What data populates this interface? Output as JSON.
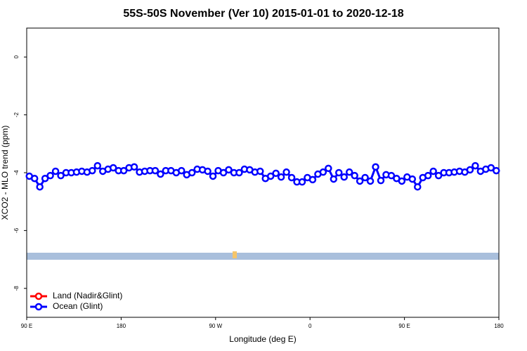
{
  "chart_data": {
    "type": "line",
    "title": "55S-50S November (Ver 10)   2015-01-01 to 2020-12-18",
    "x_label": "Longitude (deg E)",
    "y_label": "XCO2 - MLO trend (ppm)",
    "xlim": [
      90,
      540
    ],
    "xticks": [
      {
        "value": 90,
        "label": "90 E"
      },
      180,
      {
        "value": 270,
        "label": "90 W"
      },
      {
        "value": 360,
        "label": "0"
      },
      {
        "value": 450,
        "label": "90 E"
      },
      {
        "value": 540,
        "label": "180"
      }
    ],
    "ylim": [
      -9,
      1
    ],
    "yticks": [
      0,
      -2,
      -4,
      -6,
      -8
    ],
    "legend": "bottom-left",
    "x": [
      92.5,
      97.5,
      102.5,
      107.5,
      112.5,
      117.5,
      122.5,
      127.5,
      132.5,
      137.5,
      142.5,
      147.5,
      152.5,
      157.5,
      162.5,
      167.5,
      172.5,
      177.5,
      182.5,
      187.5,
      192.5,
      197.5,
      202.5,
      207.5,
      212.5,
      217.5,
      222.5,
      227.5,
      232.5,
      237.5,
      242.5,
      247.5,
      252.5,
      257.5,
      262.5,
      267.5,
      272.5,
      277.5,
      282.5,
      287.5,
      292.5,
      297.5,
      302.5,
      307.5,
      312.5,
      317.5,
      322.5,
      327.5,
      332.5,
      337.5,
      342.5,
      347.5,
      352.5,
      357.5,
      362.5,
      367.5,
      372.5,
      377.5,
      382.5,
      387.5,
      392.5,
      397.5,
      402.5,
      407.5,
      412.5,
      417.5,
      422.5,
      427.5,
      432.5,
      437.5,
      442.5,
      447.5,
      452.5,
      457.5,
      462.5,
      467.5,
      472.5,
      477.5,
      482.5,
      487.5,
      492.5,
      497.5,
      502.5,
      507.5,
      512.5,
      517.5,
      522.5,
      527.5,
      532.5,
      537.5
    ],
    "series": [
      {
        "name": "Land (Nadir&Glint)",
        "color": "#ff0000",
        "values": [
          null,
          null,
          null,
          null,
          null,
          null,
          null,
          null,
          null,
          null,
          null,
          null,
          null,
          null,
          null,
          null,
          null,
          null,
          null,
          null,
          null,
          null,
          null,
          null,
          null,
          null,
          null,
          null,
          null,
          null,
          null,
          null,
          null,
          null,
          null,
          null,
          null,
          null,
          null,
          null,
          null,
          null,
          null,
          null,
          null,
          null,
          null,
          null,
          null,
          null,
          null,
          null,
          null,
          null,
          null,
          null,
          null,
          null,
          null,
          null,
          null,
          null,
          null,
          null,
          null,
          null,
          null,
          null,
          null,
          null,
          null,
          null,
          null,
          null,
          null,
          null,
          null,
          null,
          null,
          null,
          null,
          null,
          null,
          null,
          null,
          null,
          null,
          null,
          null,
          null
        ]
      },
      {
        "name": "Ocean (Glint)",
        "color": "#0000ff",
        "values": [
          -4.12,
          -4.2,
          -4.49,
          -4.2,
          -4.1,
          -3.95,
          -4.1,
          -4.0,
          -4.0,
          -3.98,
          -3.95,
          -3.98,
          -3.93,
          -3.76,
          -3.95,
          -3.88,
          -3.83,
          -3.93,
          -3.93,
          -3.83,
          -3.8,
          -3.98,
          -3.95,
          -3.93,
          -3.93,
          -4.05,
          -3.93,
          -3.93,
          -4.0,
          -3.93,
          -4.07,
          -4.0,
          -3.88,
          -3.9,
          -3.95,
          -4.12,
          -3.93,
          -4.0,
          -3.9,
          -4.0,
          -4.0,
          -3.88,
          -3.9,
          -3.98,
          -3.95,
          -4.2,
          -4.12,
          -4.02,
          -4.15,
          -3.98,
          -4.17,
          -4.32,
          -4.32,
          -4.17,
          -4.24,
          -4.05,
          -3.98,
          -3.85,
          -4.22,
          -4.0,
          -4.15,
          -3.98,
          -4.1,
          -4.29,
          -4.17,
          -4.29,
          -3.8,
          -4.27,
          -4.07,
          -4.1,
          -4.2,
          -4.29,
          -4.15,
          -4.22,
          -4.49,
          -4.17,
          -4.1,
          -3.95,
          -4.1,
          -4.0,
          -4.0,
          -3.98,
          -3.95,
          -3.98,
          -3.9,
          -3.76,
          -3.95,
          -3.88,
          -3.83,
          -3.93
        ]
      }
    ]
  }
}
